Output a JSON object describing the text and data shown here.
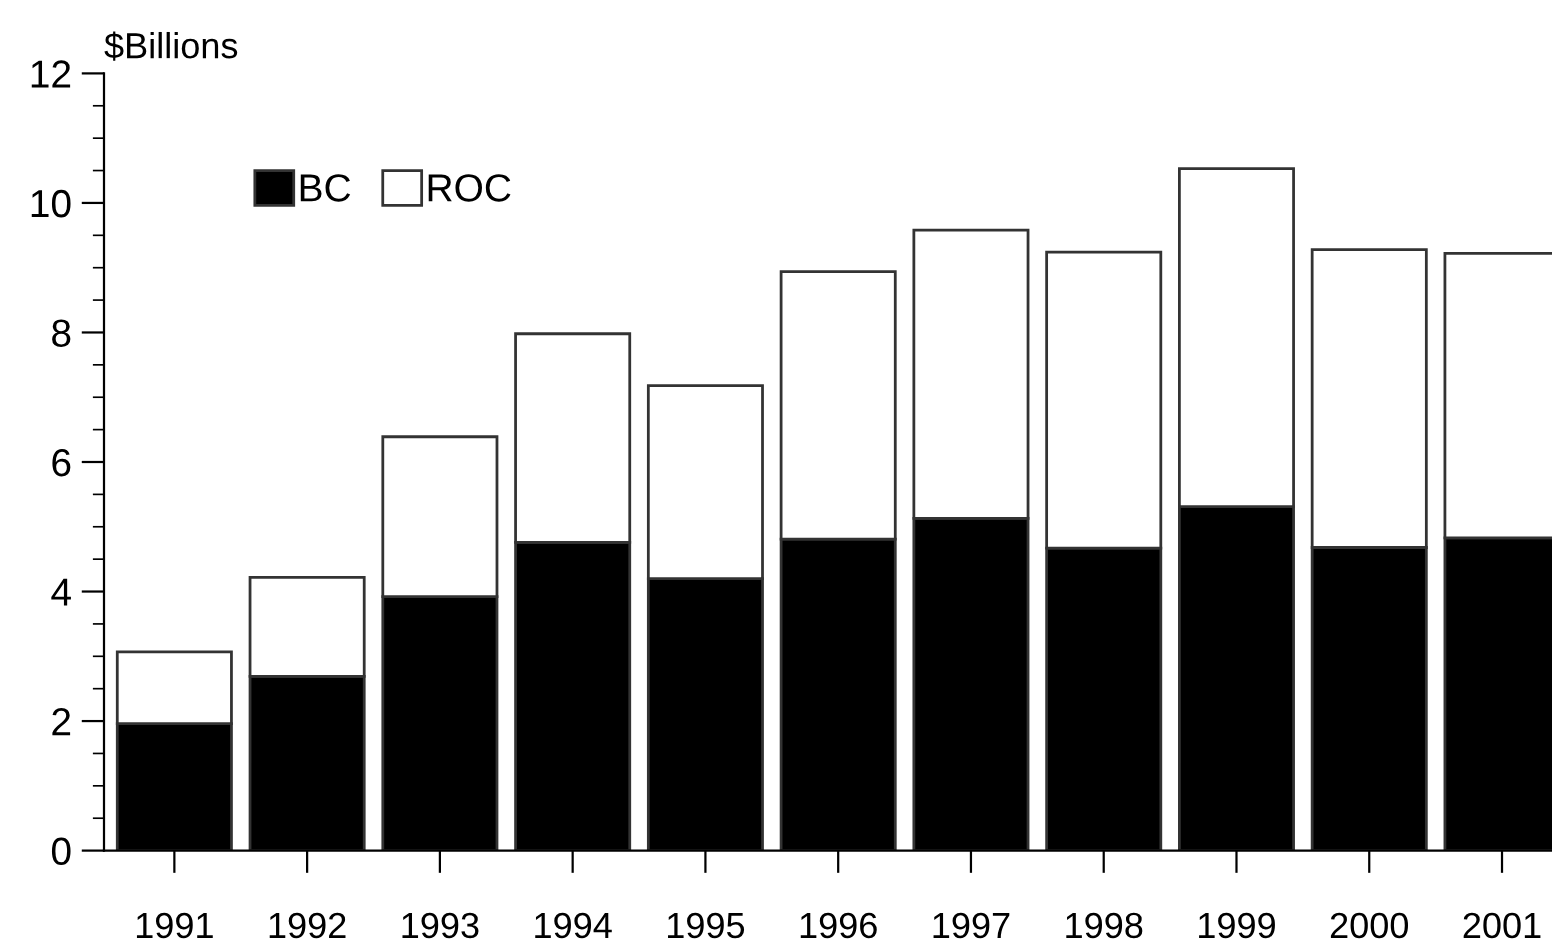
{
  "chart_data": {
    "type": "bar",
    "stacked": true,
    "ylabel": "$Billions",
    "categories": [
      "1991",
      "1992",
      "1993",
      "1994",
      "1995",
      "1996",
      "1997",
      "1998",
      "1999",
      "2000",
      "2001"
    ],
    "series": [
      {
        "name": "BC",
        "color": "#000000",
        "values": [
          1.96,
          2.69,
          3.92,
          4.76,
          4.2,
          4.81,
          5.13,
          4.67,
          5.31,
          4.68,
          4.83
        ]
      },
      {
        "name": "ROC",
        "color": "#ffffff",
        "values": [
          1.11,
          1.53,
          2.47,
          3.22,
          2.98,
          4.13,
          4.45,
          4.57,
          5.22,
          4.6,
          4.39
        ]
      }
    ],
    "ylim": [
      0,
      12
    ],
    "yticks": [
      0,
      2,
      4,
      6,
      8,
      10,
      12
    ],
    "grid": false,
    "legend": "top left"
  }
}
